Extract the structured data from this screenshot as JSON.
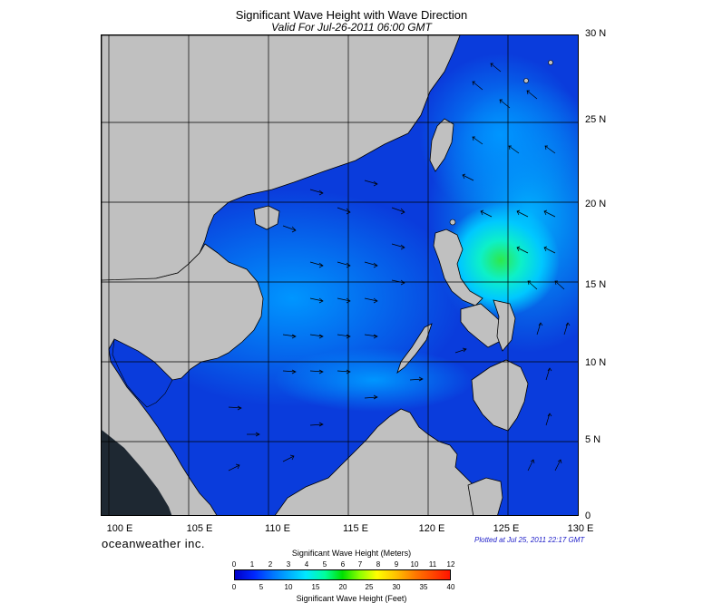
{
  "title": "Significant Wave Height with Wave Direction",
  "subtitle": "Valid For Jul-26-2011 06:00 GMT",
  "brand": "oceanweather inc.",
  "plotted": "Plotted at Jul 25, 2011 22:17 GMT",
  "lat_labels": [
    "30 N",
    "25 N",
    "20 N",
    "15 N",
    "10 N",
    "5 N",
    "0"
  ],
  "lon_labels": [
    "100 E",
    "105 E",
    "110 E",
    "115 E",
    "120 E",
    "125 E",
    "130 E"
  ],
  "colorbar": {
    "title_top": "Significant Wave Height (Meters)",
    "title_bottom": "Significant Wave Height (Feet)",
    "meters": [
      "0",
      "1",
      "2",
      "3",
      "4",
      "5",
      "6",
      "7",
      "8",
      "9",
      "10",
      "11",
      "12"
    ],
    "feet": [
      "0",
      "5",
      "10",
      "15",
      "20",
      "25",
      "30",
      "35",
      "40"
    ]
  },
  "map_region": {
    "lon_range": [
      99,
      130
    ],
    "lat_range": [
      0,
      30
    ]
  },
  "colors": {
    "land": "#c0c0c0",
    "deep_sea": "#0a32d2",
    "wave_peak": "#28e650",
    "brand_text": "#1c1cc8"
  }
}
